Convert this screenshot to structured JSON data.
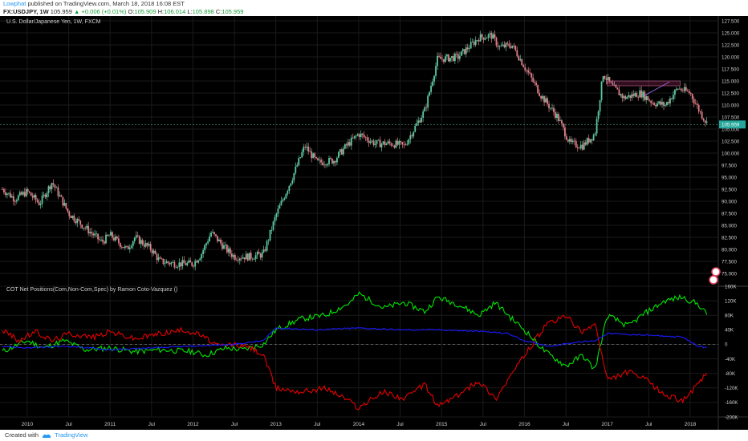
{
  "header": {
    "user": "Lowphat",
    "published": "published on TradingView.com, March 18, 2018 16:08 EST",
    "symbol": "FX:USDJPY, 1W",
    "last": "105.959",
    "change": "▲ +0.006 (+0.01%)",
    "o_label": "O:",
    "o_value": "105.909",
    "h_label": "H:",
    "h_value": "106.014",
    "l_label": "L:",
    "l_value": "105.898",
    "c_label": "C:",
    "c_value": "105.959"
  },
  "footer": {
    "created_with": "Created with",
    "brand": "TradingView",
    "logo_icon": "tradingview-logo-icon"
  },
  "chart_data": [
    {
      "type": "candlestick",
      "title": "U.S. Dollar/Japanese Yen, 1W, FXCM",
      "current_price_label": "105.959",
      "ylim": [
        72.5,
        128.5
      ],
      "y_ticks": [
        "75.000",
        "77.500",
        "80.000",
        "82.500",
        "85.000",
        "87.500",
        "90.000",
        "92.500",
        "95.000",
        "97.500",
        "100.000",
        "102.500",
        "105.000",
        "107.500",
        "110.000",
        "112.500",
        "115.000",
        "117.500",
        "120.000",
        "122.500",
        "125.000",
        "127.500"
      ],
      "x_ticks": [
        "2010",
        "Jul",
        "2011",
        "Jul",
        "2012",
        "Jul",
        "2013",
        "Jul",
        "2014",
        "Jul",
        "2015",
        "Jul",
        "2016",
        "Jul",
        "2017",
        "Jul",
        "2018"
      ],
      "colors": {
        "up": "#5cc8a0",
        "down": "#e07f88",
        "price_line": "#5cc8a0"
      },
      "path_points": [
        [
          2009.7,
          92.5
        ],
        [
          2009.85,
          90.5
        ],
        [
          2010.0,
          92.0
        ],
        [
          2010.15,
          89.5
        ],
        [
          2010.3,
          94.0
        ],
        [
          2010.5,
          87.5
        ],
        [
          2010.7,
          84.5
        ],
        [
          2010.9,
          81.5
        ],
        [
          2011.0,
          83.0
        ],
        [
          2011.2,
          80.0
        ],
        [
          2011.3,
          82.5
        ],
        [
          2011.5,
          80.0
        ],
        [
          2011.6,
          77.5
        ],
        [
          2011.8,
          77.0
        ],
        [
          2012.0,
          77.0
        ],
        [
          2012.1,
          79.0
        ],
        [
          2012.22,
          83.5
        ],
        [
          2012.4,
          80.0
        ],
        [
          2012.5,
          78.5
        ],
        [
          2012.7,
          78.5
        ],
        [
          2012.85,
          79.0
        ],
        [
          2013.0,
          87.0
        ],
        [
          2013.2,
          95.0
        ],
        [
          2013.35,
          101.5
        ],
        [
          2013.5,
          98.0
        ],
        [
          2013.7,
          98.5
        ],
        [
          2013.85,
          101.5
        ],
        [
          2014.0,
          104.0
        ],
        [
          2014.2,
          102.0
        ],
        [
          2014.4,
          102.0
        ],
        [
          2014.55,
          101.5
        ],
        [
          2014.8,
          109.0
        ],
        [
          2014.95,
          119.5
        ],
        [
          2015.2,
          120.0
        ],
        [
          2015.45,
          124.0
        ],
        [
          2015.6,
          124.5
        ],
        [
          2015.7,
          122.0
        ],
        [
          2015.85,
          122.5
        ],
        [
          2016.0,
          118.0
        ],
        [
          2016.2,
          112.0
        ],
        [
          2016.4,
          107.5
        ],
        [
          2016.55,
          102.0
        ],
        [
          2016.7,
          101.5
        ],
        [
          2016.85,
          104.0
        ],
        [
          2016.95,
          116.5
        ],
        [
          2017.05,
          114.0
        ],
        [
          2017.2,
          111.5
        ],
        [
          2017.4,
          112.5
        ],
        [
          2017.55,
          110.5
        ],
        [
          2017.7,
          110.0
        ],
        [
          2017.85,
          113.5
        ],
        [
          2018.0,
          112.5
        ],
        [
          2018.12,
          108.5
        ],
        [
          2018.21,
          105.96
        ]
      ],
      "annotation_box": {
        "from": 2017.0,
        "to": 2017.88,
        "low": 114.0,
        "high": 115.0
      }
    },
    {
      "type": "line",
      "title": "COT Net Positions(Com,Non-Com,Spec) by Ramon Coto-Vazquez ()",
      "ylim": [
        -200000,
        160000
      ],
      "y_ticks": [
        "160K",
        "120K",
        "80K",
        "40K",
        "0",
        "-40K",
        "-80K",
        "-120K",
        "-160K",
        "-200K"
      ],
      "y_tick_values": [
        160000,
        120000,
        80000,
        40000,
        0,
        -40000,
        -80000,
        -120000,
        -160000,
        -200000
      ],
      "x_ticks": [
        "2010",
        "Jul",
        "2011",
        "Jul",
        "2012",
        "Jul",
        "2013",
        "Jul",
        "2014",
        "Jul",
        "2015",
        "Jul",
        "2016",
        "Jul",
        "2017",
        "Jul",
        "2018"
      ],
      "series": [
        {
          "color": "#00e600",
          "points": [
            [
              2009.7,
              -20000
            ],
            [
              2010.0,
              10000
            ],
            [
              2010.2,
              -10000
            ],
            [
              2010.45,
              10000
            ],
            [
              2010.7,
              -15000
            ],
            [
              2011.0,
              -10000
            ],
            [
              2011.3,
              -20000
            ],
            [
              2011.6,
              -15000
            ],
            [
              2012.0,
              -20000
            ],
            [
              2012.15,
              -30000
            ],
            [
              2012.4,
              -10000
            ],
            [
              2012.6,
              -15000
            ],
            [
              2012.85,
              0
            ],
            [
              2013.0,
              40000
            ],
            [
              2013.3,
              70000
            ],
            [
              2013.6,
              80000
            ],
            [
              2013.9,
              115000
            ],
            [
              2014.0,
              140000
            ],
            [
              2014.3,
              100000
            ],
            [
              2014.55,
              115000
            ],
            [
              2014.8,
              90000
            ],
            [
              2014.95,
              130000
            ],
            [
              2015.2,
              110000
            ],
            [
              2015.45,
              80000
            ],
            [
              2015.65,
              115000
            ],
            [
              2015.85,
              70000
            ],
            [
              2016.0,
              40000
            ],
            [
              2016.25,
              -20000
            ],
            [
              2016.5,
              -60000
            ],
            [
              2016.7,
              -30000
            ],
            [
              2016.85,
              -70000
            ],
            [
              2017.0,
              80000
            ],
            [
              2017.25,
              50000
            ],
            [
              2017.45,
              85000
            ],
            [
              2017.7,
              120000
            ],
            [
              2017.9,
              130000
            ],
            [
              2018.1,
              110000
            ],
            [
              2018.21,
              80000
            ]
          ]
        },
        {
          "color": "#e60000",
          "points": [
            [
              2009.7,
              40000
            ],
            [
              2009.9,
              10000
            ],
            [
              2010.1,
              35000
            ],
            [
              2010.3,
              10000
            ],
            [
              2010.5,
              30000
            ],
            [
              2010.8,
              20000
            ],
            [
              2011.0,
              35000
            ],
            [
              2011.3,
              15000
            ],
            [
              2011.6,
              30000
            ],
            [
              2011.9,
              40000
            ],
            [
              2012.1,
              25000
            ],
            [
              2012.3,
              -5000
            ],
            [
              2012.5,
              0
            ],
            [
              2012.7,
              -10000
            ],
            [
              2012.85,
              -30000
            ],
            [
              2013.0,
              -120000
            ],
            [
              2013.3,
              -130000
            ],
            [
              2013.6,
              -120000
            ],
            [
              2013.85,
              -150000
            ],
            [
              2014.0,
              -175000
            ],
            [
              2014.3,
              -130000
            ],
            [
              2014.55,
              -150000
            ],
            [
              2014.8,
              -110000
            ],
            [
              2014.95,
              -170000
            ],
            [
              2015.2,
              -140000
            ],
            [
              2015.45,
              -100000
            ],
            [
              2015.65,
              -150000
            ],
            [
              2015.85,
              -80000
            ],
            [
              2016.0,
              -30000
            ],
            [
              2016.25,
              50000
            ],
            [
              2016.5,
              80000
            ],
            [
              2016.7,
              30000
            ],
            [
              2016.85,
              60000
            ],
            [
              2017.0,
              -100000
            ],
            [
              2017.25,
              -75000
            ],
            [
              2017.45,
              -95000
            ],
            [
              2017.7,
              -140000
            ],
            [
              2017.9,
              -155000
            ],
            [
              2018.1,
              -110000
            ],
            [
              2018.21,
              -75000
            ]
          ]
        },
        {
          "color": "#1a1aff",
          "points": [
            [
              2009.7,
              -5000
            ],
            [
              2010.0,
              -10000
            ],
            [
              2010.5,
              -5000
            ],
            [
              2011.0,
              -15000
            ],
            [
              2011.5,
              -10000
            ],
            [
              2012.0,
              -5000
            ],
            [
              2012.5,
              0
            ],
            [
              2012.85,
              10000
            ],
            [
              2013.0,
              45000
            ],
            [
              2013.5,
              40000
            ],
            [
              2014.0,
              45000
            ],
            [
              2014.5,
              40000
            ],
            [
              2015.0,
              40000
            ],
            [
              2015.5,
              35000
            ],
            [
              2015.8,
              30000
            ],
            [
              2016.0,
              10000
            ],
            [
              2016.3,
              -5000
            ],
            [
              2016.6,
              5000
            ],
            [
              2016.85,
              10000
            ],
            [
              2017.0,
              30000
            ],
            [
              2017.5,
              25000
            ],
            [
              2017.9,
              20000
            ],
            [
              2018.1,
              -5000
            ],
            [
              2018.21,
              -10000
            ]
          ]
        }
      ]
    }
  ]
}
